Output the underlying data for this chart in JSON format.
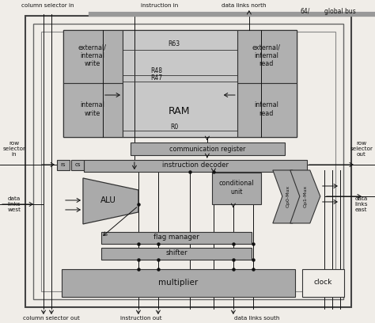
{
  "fig_width": 4.74,
  "fig_height": 4.08,
  "dpi": 100,
  "bg_color": "#f0ede8",
  "block_fc": "#aaaaaa",
  "block_fc2": "#999999",
  "block_fc_light": "#cccccc",
  "block_ec": "#333333",
  "line_color": "#111111",
  "global_bus_color": "#888888",
  "top_labels": [
    "column selector in",
    "instruction in",
    "data links north",
    "global bus"
  ],
  "bottom_labels": [
    "column selector out",
    "instruction out",
    "data links south"
  ],
  "left_labels": [
    "row\nselector\nin",
    "data\nlinks\nwest"
  ],
  "right_labels": [
    "row\nselector\nout",
    "data\nlinks\neast"
  ]
}
